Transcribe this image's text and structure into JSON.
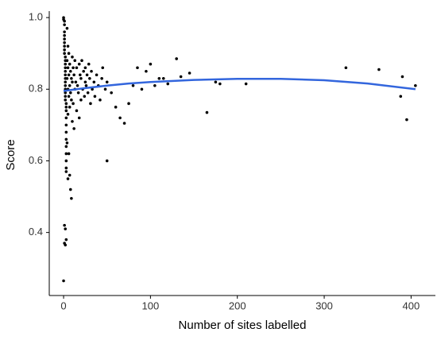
{
  "chart_data": {
    "type": "scatter",
    "x_label": "Number of sites labelled",
    "y_label": "Score",
    "xlim": [
      -16.5,
      428
    ],
    "ylim": [
      0.224,
      1.018
    ],
    "xticks": [
      0,
      100,
      200,
      300,
      400
    ],
    "yticks": [
      0.4,
      0.6,
      0.8,
      {
        "value": 1,
        "label": "1.0"
      }
    ],
    "grid": false,
    "series": [
      {
        "type": "scatter",
        "color": "#000000",
        "x": [
          0,
          0,
          1,
          1,
          1,
          1,
          1,
          1,
          1,
          1,
          1,
          2,
          2,
          2,
          2,
          2,
          2,
          2,
          2,
          2,
          2,
          2,
          2,
          2,
          3,
          3,
          3,
          3,
          3,
          3,
          3,
          3,
          3,
          3,
          3,
          3,
          1,
          2,
          3,
          1,
          2,
          0,
          4,
          4,
          4,
          4,
          5,
          5,
          5,
          5,
          5,
          6,
          6,
          6,
          6,
          7,
          7,
          7,
          7,
          8,
          8,
          8,
          9,
          9,
          9,
          10,
          10,
          10,
          11,
          11,
          12,
          12,
          13,
          13,
          14,
          15,
          15,
          16,
          17,
          18,
          18,
          19,
          20,
          20,
          21,
          22,
          23,
          24,
          25,
          25,
          26,
          27,
          28,
          29,
          30,
          31,
          32,
          33,
          35,
          36,
          38,
          40,
          42,
          44,
          45,
          48,
          50,
          50,
          55,
          60,
          65,
          70,
          75,
          80,
          85,
          90,
          95,
          100,
          105,
          110,
          115,
          120,
          130,
          135,
          145,
          165,
          175,
          180,
          210,
          325,
          363,
          388,
          390,
          395,
          405
        ],
        "values": [
          1.0,
          0.995,
          0.99,
          0.98,
          0.96,
          0.95,
          0.94,
          0.93,
          0.92,
          0.91,
          0.9,
          0.89,
          0.88,
          0.87,
          0.86,
          0.85,
          0.84,
          0.83,
          0.82,
          0.81,
          0.8,
          0.79,
          0.78,
          0.77,
          0.76,
          0.75,
          0.74,
          0.72,
          0.7,
          0.68,
          0.66,
          0.64,
          0.62,
          0.6,
          0.58,
          0.57,
          0.42,
          0.41,
          0.38,
          0.37,
          0.365,
          0.265,
          0.97,
          0.88,
          0.83,
          0.65,
          0.92,
          0.86,
          0.8,
          0.73,
          0.55,
          0.9,
          0.84,
          0.78,
          0.62,
          0.87,
          0.81,
          0.75,
          0.56,
          0.85,
          0.79,
          0.52,
          0.83,
          0.77,
          0.495,
          0.89,
          0.82,
          0.71,
          0.86,
          0.76,
          0.84,
          0.69,
          0.88,
          0.8,
          0.82,
          0.86,
          0.74,
          0.81,
          0.79,
          0.87,
          0.72,
          0.84,
          0.83,
          0.77,
          0.88,
          0.8,
          0.85,
          0.78,
          0.86,
          0.82,
          0.81,
          0.84,
          0.79,
          0.87,
          0.83,
          0.76,
          0.85,
          0.8,
          0.82,
          0.78,
          0.84,
          0.81,
          0.77,
          0.83,
          0.86,
          0.8,
          0.6,
          0.82,
          0.79,
          0.75,
          0.72,
          0.705,
          0.76,
          0.81,
          0.86,
          0.8,
          0.85,
          0.87,
          0.81,
          0.83,
          0.83,
          0.815,
          0.885,
          0.835,
          0.845,
          0.735,
          0.82,
          0.815,
          0.815,
          0.86,
          0.855,
          0.78,
          0.835,
          0.715,
          0.81
        ]
      },
      {
        "type": "line",
        "color": "#3366dd",
        "x": [
          0,
          25,
          50,
          75,
          100,
          150,
          200,
          250,
          300,
          350,
          405
        ],
        "values": [
          0.795,
          0.803,
          0.81,
          0.816,
          0.82,
          0.826,
          0.829,
          0.829,
          0.825,
          0.816,
          0.8
        ]
      }
    ]
  }
}
